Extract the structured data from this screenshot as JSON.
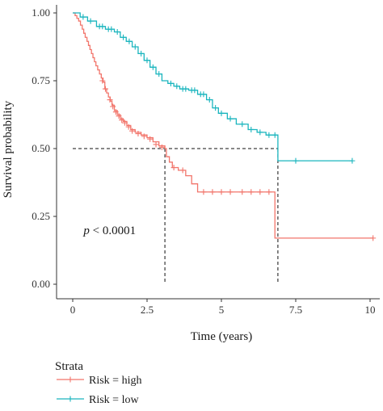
{
  "chart_data": {
    "type": "line",
    "subtype": "kaplan-meier-survival",
    "xlabel": "Time (years)",
    "ylabel": "Survival probability",
    "xlim": [
      0,
      10.5
    ],
    "ylim": [
      0,
      1.02
    ],
    "x_ticks": [
      0,
      2.5,
      5,
      7.5,
      10
    ],
    "x_tick_labels": [
      "0",
      "2.5",
      "5",
      "7.5",
      "10"
    ],
    "y_ticks": [
      0,
      0.25,
      0.5,
      0.75,
      1.0
    ],
    "y_tick_labels": [
      "0.00",
      "0.25",
      "0.50",
      "0.75",
      "1.00"
    ],
    "grid": false,
    "annotation": {
      "p_symbol": "p",
      "p_rest": " < 0.0001",
      "x": 0.2,
      "y": 0.2
    },
    "median_reference": {
      "y": 0.5,
      "high_median_x": 3.1,
      "low_median_x": 6.9
    },
    "legend": {
      "title": "Strata",
      "position": "bottom",
      "entries": [
        "Risk = high",
        "Risk = low"
      ]
    },
    "series": [
      {
        "name": "Risk = high",
        "color": "#f2756b",
        "steps": [
          [
            0,
            1.0
          ],
          [
            0.08,
            0.99
          ],
          [
            0.14,
            0.98
          ],
          [
            0.2,
            0.97
          ],
          [
            0.26,
            0.955
          ],
          [
            0.32,
            0.94
          ],
          [
            0.37,
            0.925
          ],
          [
            0.42,
            0.91
          ],
          [
            0.48,
            0.895
          ],
          [
            0.53,
            0.88
          ],
          [
            0.58,
            0.865
          ],
          [
            0.63,
            0.85
          ],
          [
            0.68,
            0.835
          ],
          [
            0.73,
            0.82
          ],
          [
            0.78,
            0.805
          ],
          [
            0.84,
            0.79
          ],
          [
            0.9,
            0.775
          ],
          [
            0.96,
            0.76
          ],
          [
            1.02,
            0.745
          ],
          [
            1.08,
            0.72
          ],
          [
            1.14,
            0.705
          ],
          [
            1.2,
            0.69
          ],
          [
            1.26,
            0.675
          ],
          [
            1.32,
            0.66
          ],
          [
            1.4,
            0.64
          ],
          [
            1.5,
            0.625
          ],
          [
            1.6,
            0.61
          ],
          [
            1.7,
            0.6
          ],
          [
            1.82,
            0.585
          ],
          [
            1.95,
            0.57
          ],
          [
            2.1,
            0.56
          ],
          [
            2.3,
            0.55
          ],
          [
            2.5,
            0.54
          ],
          [
            2.7,
            0.525
          ],
          [
            2.9,
            0.51
          ],
          [
            3.1,
            0.5
          ],
          [
            3.15,
            0.47
          ],
          [
            3.25,
            0.45
          ],
          [
            3.35,
            0.43
          ],
          [
            3.55,
            0.42
          ],
          [
            3.8,
            0.4
          ],
          [
            4.0,
            0.37
          ],
          [
            4.2,
            0.34
          ],
          [
            6.8,
            0.17
          ],
          [
            10.1,
            0.17
          ]
        ],
        "censors": [
          [
            1.0,
            0.75
          ],
          [
            1.1,
            0.72
          ],
          [
            1.25,
            0.68
          ],
          [
            1.35,
            0.655
          ],
          [
            1.45,
            0.635
          ],
          [
            1.55,
            0.62
          ],
          [
            1.65,
            0.605
          ],
          [
            1.75,
            0.595
          ],
          [
            1.88,
            0.58
          ],
          [
            2.0,
            0.565
          ],
          [
            2.2,
            0.555
          ],
          [
            2.4,
            0.545
          ],
          [
            2.6,
            0.535
          ],
          [
            2.8,
            0.515
          ],
          [
            3.0,
            0.505
          ],
          [
            3.4,
            0.43
          ],
          [
            3.7,
            0.42
          ],
          [
            4.4,
            0.34
          ],
          [
            4.7,
            0.34
          ],
          [
            5.0,
            0.34
          ],
          [
            5.3,
            0.34
          ],
          [
            5.7,
            0.34
          ],
          [
            6.0,
            0.34
          ],
          [
            6.3,
            0.34
          ],
          [
            6.6,
            0.34
          ],
          [
            10.1,
            0.17
          ]
        ]
      },
      {
        "name": "Risk = low",
        "color": "#1ab5be",
        "steps": [
          [
            0,
            1.0
          ],
          [
            0.25,
            0.985
          ],
          [
            0.5,
            0.97
          ],
          [
            0.8,
            0.95
          ],
          [
            1.1,
            0.94
          ],
          [
            1.4,
            0.93
          ],
          [
            1.6,
            0.91
          ],
          [
            1.8,
            0.895
          ],
          [
            2.0,
            0.875
          ],
          [
            2.2,
            0.85
          ],
          [
            2.4,
            0.825
          ],
          [
            2.6,
            0.8
          ],
          [
            2.8,
            0.775
          ],
          [
            3.0,
            0.75
          ],
          [
            3.2,
            0.74
          ],
          [
            3.4,
            0.73
          ],
          [
            3.6,
            0.72
          ],
          [
            3.9,
            0.715
          ],
          [
            4.2,
            0.7
          ],
          [
            4.5,
            0.68
          ],
          [
            4.7,
            0.65
          ],
          [
            4.9,
            0.63
          ],
          [
            5.2,
            0.61
          ],
          [
            5.5,
            0.59
          ],
          [
            5.9,
            0.57
          ],
          [
            6.2,
            0.56
          ],
          [
            6.5,
            0.55
          ],
          [
            6.9,
            0.455
          ],
          [
            9.4,
            0.455
          ]
        ],
        "censors": [
          [
            0.35,
            0.985
          ],
          [
            0.6,
            0.97
          ],
          [
            0.9,
            0.95
          ],
          [
            1.0,
            0.95
          ],
          [
            1.2,
            0.94
          ],
          [
            1.3,
            0.94
          ],
          [
            1.5,
            0.93
          ],
          [
            1.7,
            0.91
          ],
          [
            1.9,
            0.895
          ],
          [
            2.1,
            0.875
          ],
          [
            2.3,
            0.85
          ],
          [
            2.5,
            0.825
          ],
          [
            2.7,
            0.8
          ],
          [
            2.9,
            0.775
          ],
          [
            3.3,
            0.74
          ],
          [
            3.5,
            0.73
          ],
          [
            3.7,
            0.72
          ],
          [
            3.8,
            0.72
          ],
          [
            4.0,
            0.715
          ],
          [
            4.1,
            0.715
          ],
          [
            4.3,
            0.7
          ],
          [
            4.4,
            0.7
          ],
          [
            4.6,
            0.68
          ],
          [
            4.8,
            0.65
          ],
          [
            5.0,
            0.63
          ],
          [
            5.3,
            0.61
          ],
          [
            5.7,
            0.59
          ],
          [
            6.0,
            0.57
          ],
          [
            6.3,
            0.56
          ],
          [
            6.6,
            0.55
          ],
          [
            6.8,
            0.55
          ],
          [
            7.5,
            0.455
          ],
          [
            9.4,
            0.455
          ]
        ]
      }
    ]
  }
}
